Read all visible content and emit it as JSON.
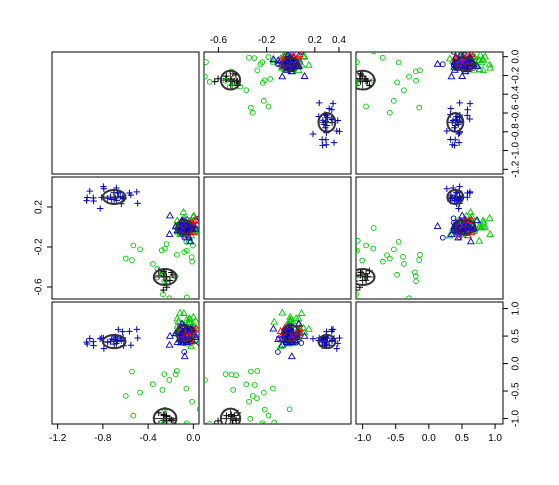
{
  "chart_data": {
    "type": "scatter",
    "layout": "pairs-3x3",
    "title": "",
    "legend": "none",
    "grid": false,
    "colors": {
      "black": "#000000",
      "red": "#ff0000",
      "green": "#00cc00",
      "blue": "#0000cc",
      "purple": "#7f00ff",
      "ellipse": "#333333"
    },
    "variables": [
      {
        "name": "",
        "range": [
          -1.25,
          0.05
        ],
        "ticks": [
          -1.2,
          -0.8,
          -0.4,
          0.0
        ],
        "tick_labels": [
          "-1.2",
          "-0.8",
          "-0.4",
          "0.0"
        ],
        "axis_side": "bottom"
      },
      {
        "name": "",
        "range": [
          -0.72,
          0.5
        ],
        "ticks": [
          -0.6,
          -0.2,
          0.2,
          0.4
        ],
        "tick_labels": [
          "-0.6",
          "-0.2",
          "0.2",
          "0.4"
        ],
        "axis_side": "top"
      },
      {
        "name": "",
        "range": [
          -1.1,
          1.12
        ],
        "ticks": [
          -1.0,
          -0.5,
          0.0,
          0.5,
          1.0
        ],
        "tick_labels": [
          "-1.0",
          "-0.5",
          "0.0",
          "0.5",
          "1.0"
        ],
        "axis_side": "bottom"
      }
    ],
    "left_axes": [
      {
        "row": 1,
        "ticks": [
          0.2,
          -0.2,
          -0.6
        ],
        "tick_labels": [
          "0.2",
          "-0.2",
          "-0.6"
        ]
      }
    ],
    "right_axes": [
      {
        "row": 0,
        "range": [
          -1.25,
          0.05
        ],
        "ticks": [
          0.0,
          -0.2,
          -0.4,
          -0.6,
          -0.8,
          -1.0,
          -1.2
        ],
        "tick_labels": [
          "0.0",
          "-0.2",
          "-0.4",
          "-0.6",
          "-0.8",
          "-1.0",
          "-1.2"
        ]
      },
      {
        "row": 2,
        "ticks": [
          1.0,
          0.5,
          0.0,
          -0.5,
          -1.0
        ],
        "tick_labels": [
          "1.0",
          "0.5",
          "0.0",
          "-0.5",
          "-1.0"
        ]
      }
    ],
    "groups": [
      {
        "color": "black",
        "marker": "plus",
        "center": [
          -0.25,
          -0.5,
          -1.0
        ],
        "spread": [
          0.05,
          0.05,
          0.08
        ],
        "n": 14
      },
      {
        "color": "green",
        "marker": "circle",
        "center": [
          -0.2,
          -0.3,
          -0.8
        ],
        "spread": [
          0.2,
          0.2,
          0.4
        ],
        "n": 30
      },
      {
        "color": "green",
        "marker": "triangle",
        "center": [
          -0.05,
          0.0,
          0.6
        ],
        "spread": [
          0.06,
          0.06,
          0.15
        ],
        "n": 40
      },
      {
        "color": "red",
        "marker": "triangle",
        "center": [
          -0.05,
          0.0,
          0.55
        ],
        "spread": [
          0.05,
          0.05,
          0.12
        ],
        "n": 20
      },
      {
        "color": "blue",
        "marker": "triangle",
        "center": [
          -0.08,
          -0.02,
          0.55
        ],
        "spread": [
          0.06,
          0.06,
          0.12
        ],
        "n": 20
      },
      {
        "color": "blue",
        "marker": "plus",
        "center": [
          -0.7,
          0.3,
          0.4
        ],
        "spread": [
          0.12,
          0.05,
          0.08
        ],
        "n": 28
      },
      {
        "color": "blue",
        "marker": "circle",
        "center": [
          -0.05,
          0.0,
          0.5
        ],
        "spread": [
          0.05,
          0.05,
          0.1
        ],
        "n": 14
      },
      {
        "color": "purple",
        "marker": "circle",
        "center": [
          -0.05,
          0.0,
          0.5
        ],
        "spread": [
          0.05,
          0.05,
          0.1
        ],
        "n": 6
      }
    ],
    "ellipses": [
      {
        "center": [
          -0.25,
          -0.5,
          -1.0
        ],
        "radii": [
          0.1,
          0.08,
          0.18
        ]
      },
      {
        "center": [
          -0.7,
          0.3,
          0.4
        ],
        "radii": [
          0.1,
          0.07,
          0.12
        ]
      },
      {
        "center": [
          -0.08,
          0.0,
          0.55
        ],
        "radii": [
          0.07,
          0.07,
          0.15
        ]
      }
    ]
  }
}
